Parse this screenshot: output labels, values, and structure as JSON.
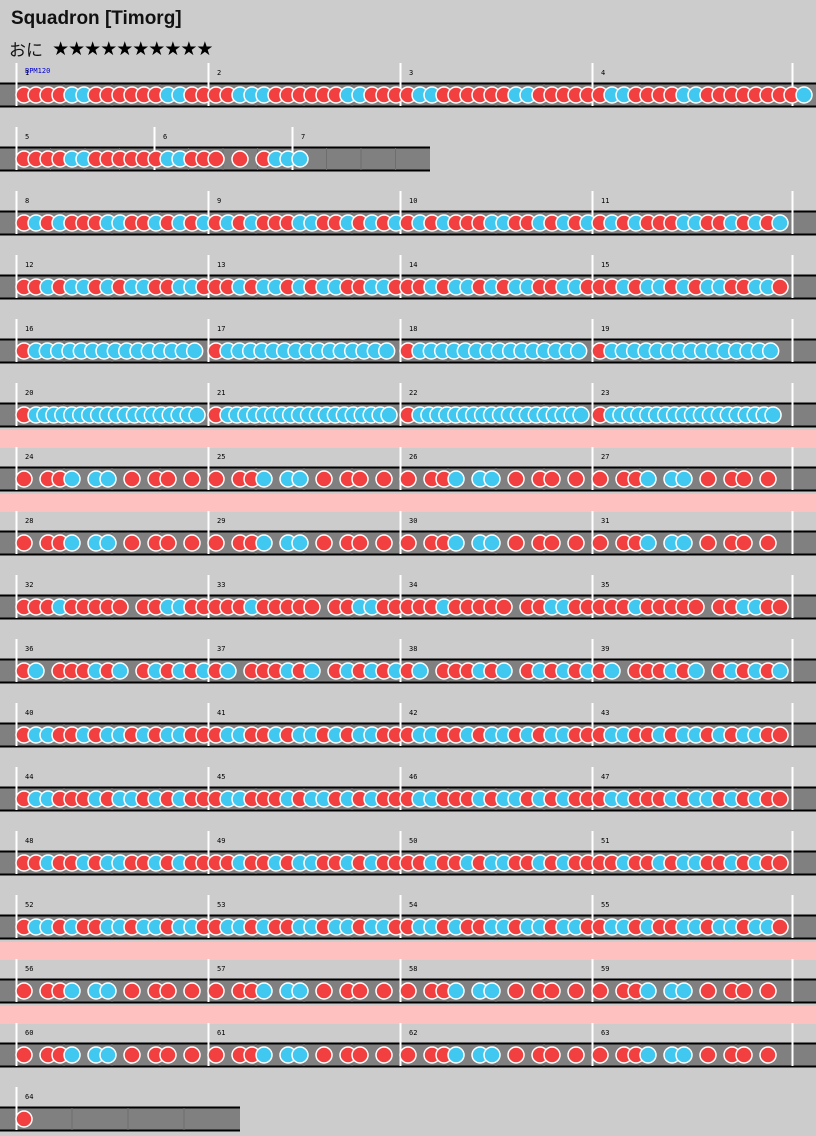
{
  "song": {
    "title": "Squadron [Timorg]",
    "course_label": "おに",
    "stars": "★★★★★★★★★★",
    "bpm_label": "BPM120"
  },
  "colors": {
    "background": "#cccccc",
    "lane": "#808080",
    "lane_dark": "#6e6e6e",
    "gogo_band": "#ffc0c0",
    "don": "#f24040",
    "ka": "#40c8f0",
    "note_border": "#ffffff",
    "barline": "#ffffff",
    "rail": "#000000"
  },
  "measure_numbers": [
    1,
    2,
    3,
    4,
    5,
    6,
    7,
    8,
    9,
    10,
    11,
    12,
    13,
    14,
    15,
    16,
    17,
    18,
    19,
    20,
    21,
    22,
    23,
    24,
    25,
    26,
    27,
    28,
    29,
    30,
    31,
    32,
    33,
    34,
    35,
    36,
    37,
    38,
    39,
    40,
    41,
    42,
    43,
    44,
    45,
    46,
    47,
    48,
    49,
    50,
    51,
    52,
    53,
    54,
    55,
    56,
    57,
    58,
    59,
    60,
    61,
    62,
    63,
    64
  ],
  "rows": [
    {
      "measures": [
        "1",
        "2",
        "3",
        "4"
      ],
      "gogo": false,
      "notes": [
        "ddddkkddddddkkddddkkkddddddkkddddkkddddddkkddddddkkddddkkdddd",
        "ddddkkddddddkkddddkkkddddddkkddddkkddddddkkddddddkkddddkkdddd",
        "ddddkkddddddkkddddkkkddddddkkddddkkddddddkkddddddkkddddkkdddd",
        "ddddkkddddddkk0kkdd0d0"
      ]
    },
    {
      "measures": [
        "5",
        "6",
        "7"
      ],
      "gogo": false,
      "dashed": true,
      "width": 430,
      "notes": [
        "ddddkkddddddkkdd",
        "d0d0dkkk"
      ]
    },
    {
      "measures": [
        "8",
        "9",
        "10",
        "11"
      ],
      "gogo": false,
      "mixed": "dkdkdddkkddkdk"
    },
    {
      "measures": [
        "12",
        "13",
        "14",
        "15"
      ],
      "gogo": false,
      "mixed": "ddkdkkdkdkkddkk"
    },
    {
      "measures": [
        "16",
        "17",
        "18",
        "19"
      ],
      "gogo": false,
      "stream": "dkkkkkkkkkkkkkkk"
    },
    {
      "measures": [
        "20",
        "21",
        "22",
        "23"
      ],
      "gogo": false,
      "stream": "dkkkkkkkkkkkkkkkkkkk"
    },
    {
      "measures": [
        "24",
        "25",
        "26",
        "27"
      ],
      "gogo": true,
      "pattern": "d0ddk0kk0d0dd0d0"
    },
    {
      "measures": [
        "28",
        "29",
        "30",
        "31"
      ],
      "gogo": true,
      "pattern": "d0ddk0kk0d0dd0d0"
    },
    {
      "measures": [
        "32",
        "33",
        "34",
        "35"
      ],
      "gogo": false,
      "pattern": "dddkddddd0ddkkdd"
    },
    {
      "measures": [
        "36",
        "37",
        "38",
        "39"
      ],
      "gogo": false,
      "pattern": "dk0dddkdk0dkdkdk"
    },
    {
      "measures": [
        "40",
        "41",
        "42",
        "43"
      ],
      "gogo": false,
      "mixed": "dkkddkdkkdkdkkd"
    },
    {
      "measures": [
        "44",
        "45",
        "46",
        "47"
      ],
      "gogo": false,
      "mixed": "dkkdddkdkkdkdkd"
    },
    {
      "measures": [
        "48",
        "49",
        "50",
        "51"
      ],
      "gogo": false,
      "mixed": "ddkddkdkkddkdkdd"
    },
    {
      "measures": [
        "52",
        "53",
        "54",
        "55"
      ],
      "gogo": false,
      "mixed": "dkkdkddkkdkkdkkd"
    },
    {
      "measures": [
        "56",
        "57",
        "58",
        "59"
      ],
      "gogo": true,
      "pattern": "d0ddk0kk0d0dd0d0"
    },
    {
      "measures": [
        "60",
        "61",
        "62",
        "63"
      ],
      "gogo": true,
      "pattern": "d0ddk0kk0d0dd0d0"
    },
    {
      "measures": [
        "64"
      ],
      "gogo": false,
      "width": 240,
      "notes": [
        "d"
      ]
    }
  ]
}
